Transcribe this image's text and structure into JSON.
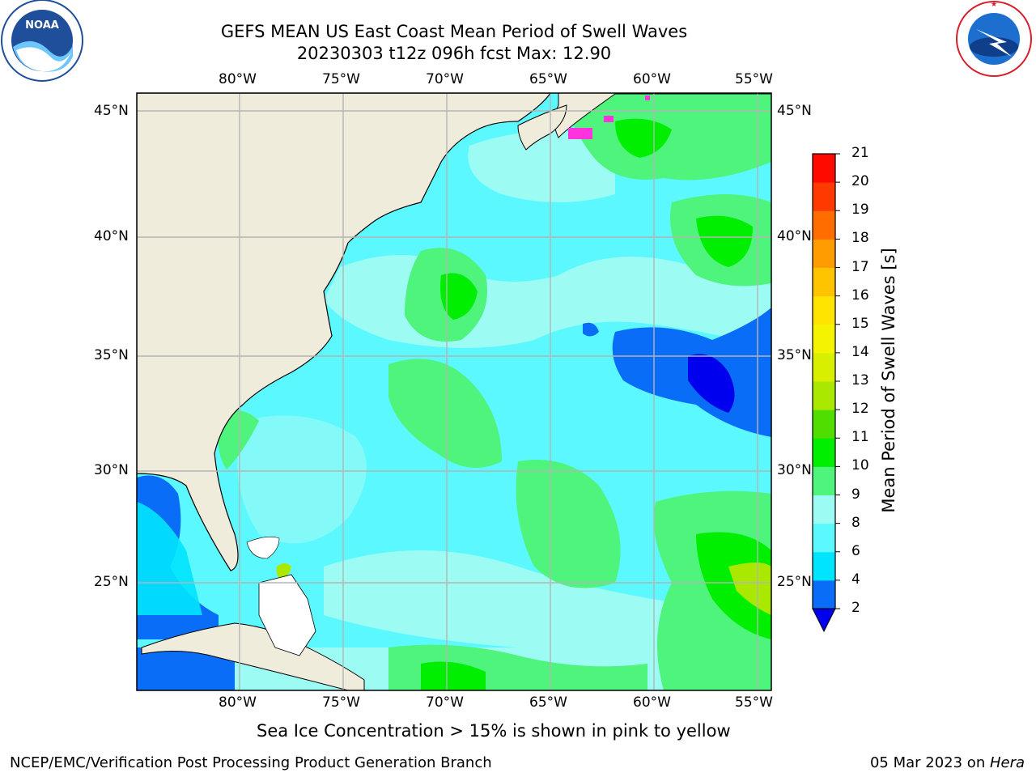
{
  "header": {
    "title_line1": "GEFS MEAN US East Coast Mean Period of Swell Waves",
    "title_line2": "20230303 t12z 096h fcst   Max: 12.90"
  },
  "logos": {
    "left": {
      "icon": "noaa-logo",
      "text": "NOAA",
      "ring_text": "NATIONAL OCEANIC AND ATMOSPHERIC ADMINISTRATION · U.S. DEPARTMENT OF COMMERCE"
    },
    "right": {
      "icon": "nws-logo",
      "ring_text": "NATIONAL WEATHER SERVICE"
    }
  },
  "map": {
    "lon_ticks": [
      "80°W",
      "75°W",
      "70°W",
      "65°W",
      "60°W",
      "55°W"
    ],
    "lat_ticks": [
      "45°N",
      "40°N",
      "35°N",
      "30°N",
      "25°N"
    ],
    "land_color": "#efecdc",
    "grid_color": "#b4b4b4"
  },
  "colorbar": {
    "label": "Mean Period of Swell Waves [s]",
    "ticks": [
      "2",
      "4",
      "6",
      "8",
      "9",
      "10",
      "11",
      "12",
      "13",
      "14",
      "15",
      "16",
      "17",
      "18",
      "19",
      "20",
      "21"
    ],
    "colors": [
      "#0a6df7",
      "#00e4ff",
      "#5cf8ff",
      "#9cfcf4",
      "#4ef47c",
      "#00ee00",
      "#50dd00",
      "#aae800",
      "#d8f000",
      "#f4f400",
      "#ffe400",
      "#ffc400",
      "#ff9c00",
      "#ff6c00",
      "#ff3a00",
      "#ff0a00"
    ],
    "extend_color": "#0000ee"
  },
  "footer": {
    "caption": "Sea Ice Concentration > 15% is shown in pink to yellow",
    "left": "NCEP/EMC/Verification Post Processing Product Generation Branch",
    "right_prefix": "05 Mar 2023 on ",
    "right_italic": "Hera"
  }
}
